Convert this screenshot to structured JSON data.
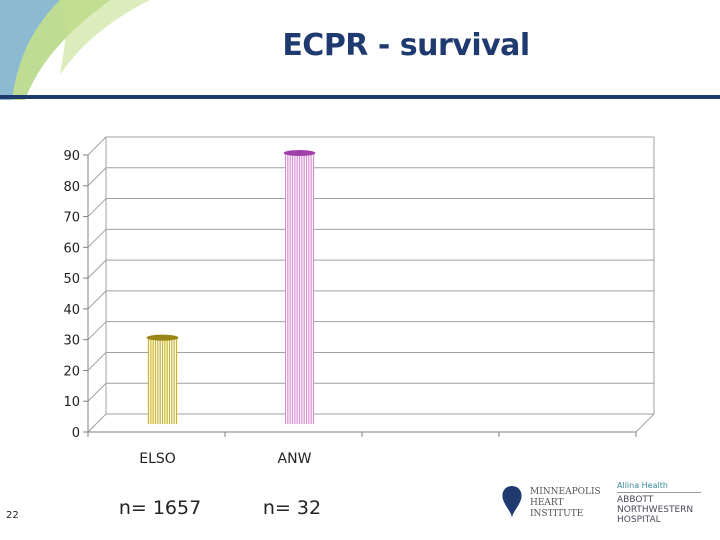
{
  "slide": {
    "title": "ECPR - survival",
    "page_number": "22",
    "n_labels": [
      "n= 1657",
      "n= 32"
    ]
  },
  "logos": {
    "mhi": [
      "MINNEAPOLIS",
      "HEART",
      "INSTITUTE"
    ],
    "anw_small": "Allina Health",
    "anw_lines": [
      "ABBOTT",
      "NORTHWESTERN",
      "HOSPITAL"
    ]
  },
  "colors": {
    "title": "#1f3a6e",
    "elso_bar": "#c9b42a",
    "anw_bar": "#d98ed6",
    "anw_top": "#a040a8",
    "elso_top": "#9a8616"
  },
  "chart_data": {
    "type": "bar",
    "title": "ECPR - survival",
    "categories": [
      "ELSO",
      "ANW",
      "",
      ""
    ],
    "values": [
      30,
      90,
      null,
      null
    ],
    "yticks": [
      0,
      10,
      20,
      30,
      40,
      50,
      60,
      70,
      80,
      90
    ],
    "ylim": [
      0,
      90
    ],
    "xlabel": "",
    "ylabel": "",
    "grid": true,
    "style": "3d-cylinder"
  }
}
